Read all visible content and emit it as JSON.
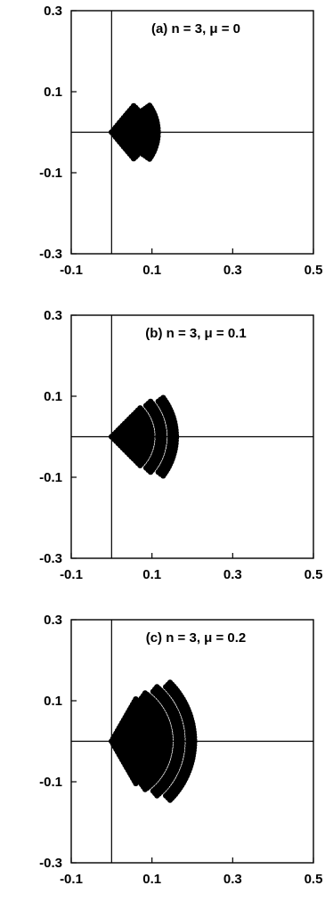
{
  "chart_data": [
    {
      "type": "scatter",
      "title": "(a) n = 3, μ = 0",
      "xlim": [
        -0.1,
        0.5
      ],
      "ylim": [
        -0.3,
        0.3
      ],
      "xticks": [
        "-0.1",
        "0.1",
        "0.3",
        "0.5"
      ],
      "yticks": [
        "0.3",
        "0.1",
        "-0.1",
        "-0.3"
      ],
      "xline": 0,
      "yline": 0,
      "grid": false,
      "bands": [
        {
          "r0": 0.0,
          "r1": 0.085,
          "ang0": -50,
          "ang1": 50
        },
        {
          "r0": 0.095,
          "r1": 0.115,
          "ang0": -35,
          "ang1": 35
        }
      ]
    },
    {
      "type": "scatter",
      "title": "(b) n = 3, μ = 0.1",
      "xlim": [
        -0.1,
        0.5
      ],
      "ylim": [
        -0.3,
        0.3
      ],
      "xticks": [
        "-0.1",
        "0.1",
        "0.3",
        "0.5"
      ],
      "yticks": [
        "0.3",
        "0.1",
        "-0.1",
        "-0.3"
      ],
      "xline": 0,
      "yline": 0,
      "grid": false,
      "bands": [
        {
          "r0": 0.0,
          "r1": 0.1,
          "ang0": -45,
          "ang1": 45
        },
        {
          "r0": 0.115,
          "r1": 0.13,
          "ang0": -42,
          "ang1": 42
        },
        {
          "r0": 0.145,
          "r1": 0.16,
          "ang0": -37,
          "ang1": 37
        }
      ]
    },
    {
      "type": "scatter",
      "title": "(c) n = 3, μ = 0.2",
      "xlim": [
        -0.1,
        0.5
      ],
      "ylim": [
        -0.3,
        0.3
      ],
      "xticks": [
        "-0.1",
        "0.1",
        "0.3",
        "0.5"
      ],
      "yticks": [
        "0.3",
        "0.1",
        "-0.1",
        "-0.3"
      ],
      "xline": 0,
      "yline": 0,
      "grid": false,
      "bands": [
        {
          "r0": 0.0,
          "r1": 0.12,
          "ang0": -60,
          "ang1": 60
        },
        {
          "r0": 0.13,
          "r1": 0.145,
          "ang0": -55,
          "ang1": 55
        },
        {
          "r0": 0.16,
          "r1": 0.175,
          "ang0": -50,
          "ang1": 50
        },
        {
          "r0": 0.19,
          "r1": 0.205,
          "ang0": -45,
          "ang1": 45
        }
      ]
    }
  ]
}
